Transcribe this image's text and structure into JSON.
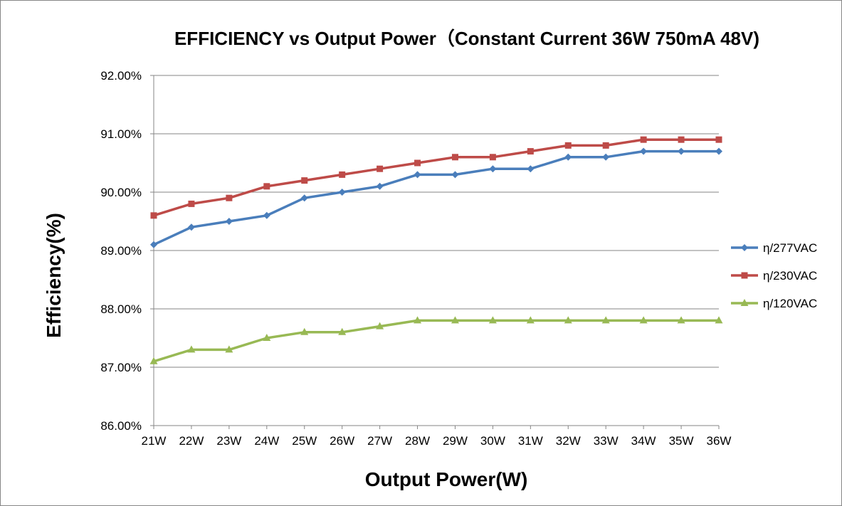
{
  "chart_data": {
    "type": "line",
    "title": "EFFICIENCY vs Output Power（Constant Current 36W 750mA 48V)",
    "xlabel": "Output Power(W)",
    "ylabel": "Efficiency(%)",
    "categories": [
      "21W",
      "22W",
      "23W",
      "24W",
      "25W",
      "26W",
      "27W",
      "28W",
      "29W",
      "30W",
      "31W",
      "32W",
      "33W",
      "34W",
      "35W",
      "36W"
    ],
    "ylim": [
      86,
      92
    ],
    "yticks": [
      86,
      87,
      88,
      89,
      90,
      91,
      92
    ],
    "ytick_labels": [
      "86.00%",
      "87.00%",
      "88.00%",
      "89.00%",
      "90.00%",
      "91.00%",
      "92.00%"
    ],
    "grid": "horizontal",
    "legend_position": "right",
    "series": [
      {
        "name": "η/277VAC",
        "color": "#4a7ebb",
        "marker": "diamond",
        "values": [
          89.1,
          89.4,
          89.5,
          89.6,
          89.9,
          90.0,
          90.1,
          90.3,
          90.3,
          90.4,
          90.4,
          90.6,
          90.6,
          90.7,
          90.7,
          90.7
        ]
      },
      {
        "name": "η/230VAC",
        "color": "#be4b48",
        "marker": "square",
        "values": [
          89.6,
          89.8,
          89.9,
          90.1,
          90.2,
          90.3,
          90.4,
          90.5,
          90.6,
          90.6,
          90.7,
          90.8,
          90.8,
          90.9,
          90.9,
          90.9
        ]
      },
      {
        "name": "η/120VAC",
        "color": "#98b954",
        "marker": "triangle",
        "values": [
          87.1,
          87.3,
          87.3,
          87.5,
          87.6,
          87.6,
          87.7,
          87.8,
          87.8,
          87.8,
          87.8,
          87.8,
          87.8,
          87.8,
          87.8,
          87.8
        ]
      }
    ]
  }
}
